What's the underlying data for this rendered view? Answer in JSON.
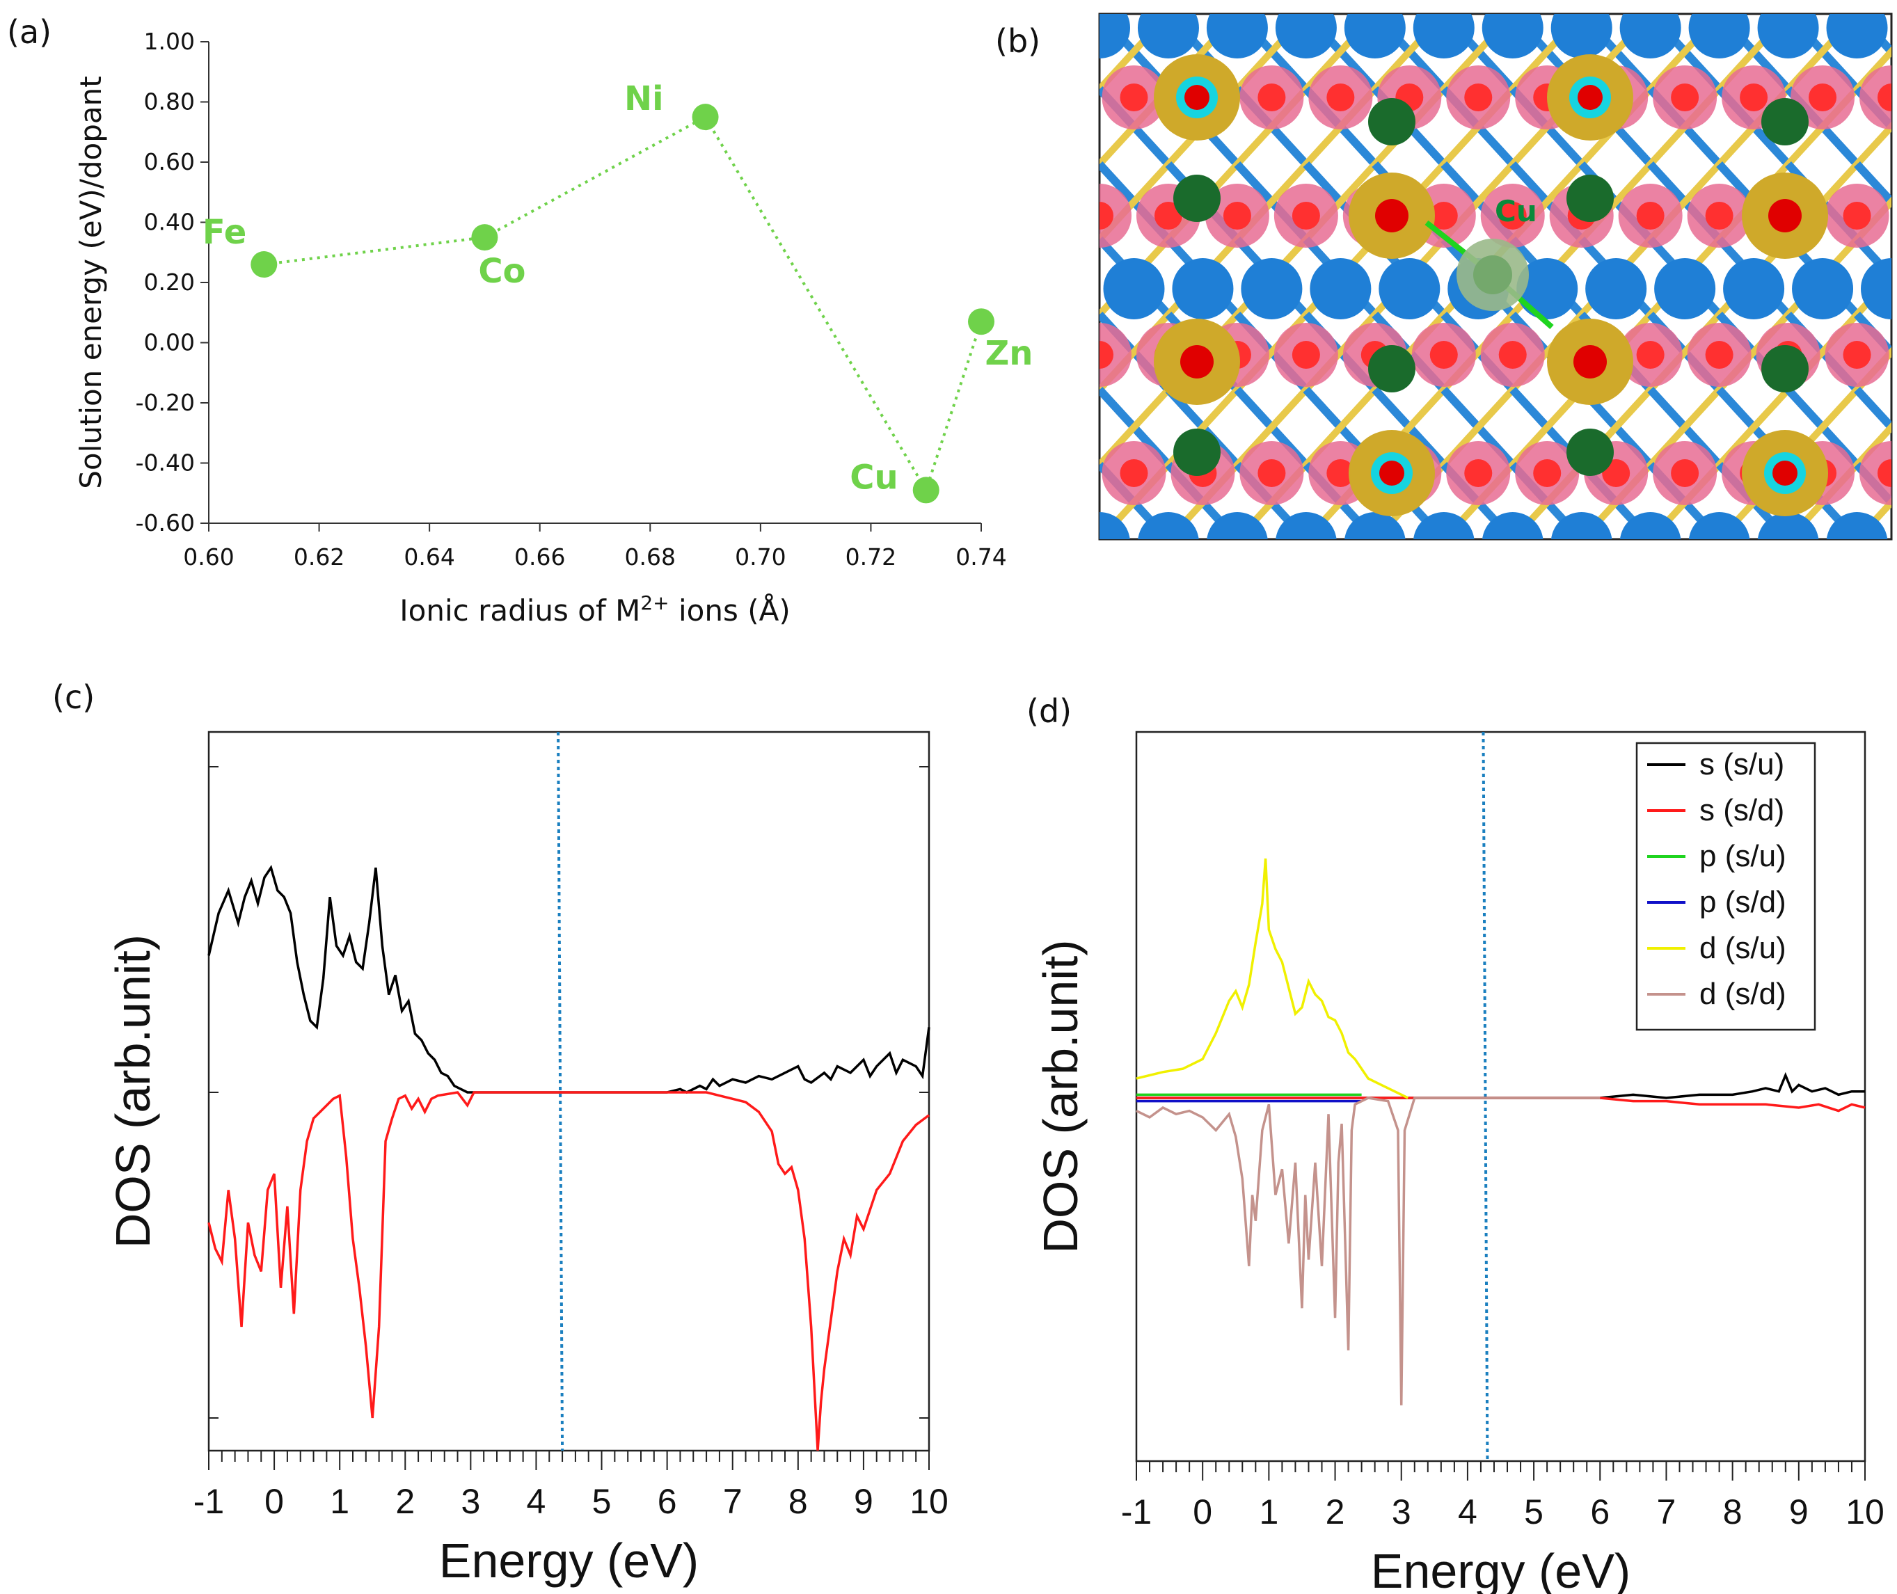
{
  "panel_labels": {
    "a": "(a)",
    "b": "(b)",
    "c": "(c)",
    "d": "(d)"
  },
  "crystal": {
    "label": "Cu"
  },
  "chart_data": [
    {
      "panel": "a",
      "type": "scatter",
      "xlabel": "Ionic radius of M",
      "xlabel_sup": "2+",
      "xlabel_tail": " ions (Å)",
      "ylabel": "Solution energy (eV)/dopant",
      "xlim": [
        0.6,
        0.74
      ],
      "ylim": [
        -0.6,
        1.0
      ],
      "xticks": [
        "0.60",
        "0.62",
        "0.64",
        "0.66",
        "0.68",
        "0.70",
        "0.72",
        "0.74"
      ],
      "yticks": [
        "1.00",
        "0.80",
        "0.60",
        "0.40",
        "0.20",
        "0.00",
        "-0.20",
        "-0.40",
        "-0.60"
      ],
      "color": "#6fd24a",
      "points": [
        {
          "label": "Fe",
          "x": 0.61,
          "y": 0.26
        },
        {
          "label": "Co",
          "x": 0.65,
          "y": 0.35
        },
        {
          "label": "Ni",
          "x": 0.69,
          "y": 0.75
        },
        {
          "label": "Cu",
          "x": 0.73,
          "y": -0.49
        },
        {
          "label": "Zn",
          "x": 0.74,
          "y": 0.07
        }
      ],
      "line_style": "dotted"
    },
    {
      "panel": "c",
      "type": "line",
      "xlabel": "Energy (eV)",
      "ylabel": "DOS (arb.unit)",
      "xlim": [
        -1,
        10
      ],
      "ylim": [
        -1.1,
        1.1
      ],
      "xticks": [
        "-1",
        "0",
        "1",
        "2",
        "3",
        "4",
        "5",
        "6",
        "7",
        "8",
        "9",
        "10"
      ],
      "fermi_level": 4.4,
      "series": [
        {
          "color": "#000000",
          "x": [
            -1,
            -0.85,
            -0.7,
            -0.55,
            -0.45,
            -0.35,
            -0.25,
            -0.15,
            -0.05,
            0.05,
            0.15,
            0.25,
            0.35,
            0.45,
            0.55,
            0.65,
            0.75,
            0.85,
            0.95,
            1.05,
            1.15,
            1.25,
            1.35,
            1.45,
            1.55,
            1.65,
            1.75,
            1.85,
            1.95,
            2.05,
            2.15,
            2.25,
            2.35,
            2.45,
            2.55,
            2.65,
            2.75,
            2.85,
            2.95,
            3.05,
            3.5,
            5,
            6,
            6.2,
            6.3,
            6.5,
            6.6,
            6.7,
            6.8,
            7,
            7.2,
            7.4,
            7.6,
            7.8,
            8,
            8.1,
            8.2,
            8.4,
            8.5,
            8.6,
            8.8,
            9,
            9.1,
            9.2,
            9.4,
            9.5,
            9.6,
            9.8,
            9.9,
            10
          ],
          "y": [
            0.42,
            0.55,
            0.62,
            0.52,
            0.6,
            0.65,
            0.58,
            0.66,
            0.69,
            0.62,
            0.6,
            0.55,
            0.4,
            0.3,
            0.22,
            0.2,
            0.35,
            0.6,
            0.45,
            0.42,
            0.48,
            0.4,
            0.38,
            0.52,
            0.69,
            0.45,
            0.3,
            0.36,
            0.25,
            0.28,
            0.18,
            0.16,
            0.12,
            0.1,
            0.06,
            0.05,
            0.02,
            0.01,
            0.0,
            0.0,
            0.0,
            0.0,
            0.0,
            0.01,
            0.0,
            0.02,
            0.01,
            0.04,
            0.02,
            0.04,
            0.03,
            0.05,
            0.04,
            0.06,
            0.08,
            0.04,
            0.03,
            0.06,
            0.04,
            0.08,
            0.06,
            0.1,
            0.05,
            0.08,
            0.12,
            0.06,
            0.1,
            0.08,
            0.05,
            0.2
          ]
        },
        {
          "color": "#ff1a1a",
          "x": [
            -1,
            -0.9,
            -0.8,
            -0.7,
            -0.6,
            -0.5,
            -0.4,
            -0.3,
            -0.2,
            -0.1,
            0,
            0.1,
            0.2,
            0.3,
            0.4,
            0.5,
            0.6,
            0.7,
            0.8,
            0.9,
            1.0,
            1.1,
            1.2,
            1.3,
            1.4,
            1.5,
            1.6,
            1.7,
            1.8,
            1.9,
            2.0,
            2.1,
            2.2,
            2.3,
            2.4,
            2.5,
            2.8,
            2.95,
            3.05,
            3.2,
            4,
            6,
            6.4,
            6.6,
            6.8,
            7,
            7.2,
            7.4,
            7.6,
            7.7,
            7.8,
            7.9,
            8.0,
            8.1,
            8.2,
            8.3,
            8.35,
            8.4,
            8.5,
            8.6,
            8.7,
            8.8,
            8.9,
            9,
            9.2,
            9.4,
            9.6,
            9.8,
            10
          ],
          "y": [
            -0.4,
            -0.48,
            -0.52,
            -0.3,
            -0.45,
            -0.72,
            -0.4,
            -0.5,
            -0.55,
            -0.3,
            -0.25,
            -0.6,
            -0.35,
            -0.68,
            -0.3,
            -0.15,
            -0.08,
            -0.06,
            -0.04,
            -0.02,
            -0.01,
            -0.2,
            -0.45,
            -0.6,
            -0.78,
            -1.0,
            -0.72,
            -0.15,
            -0.08,
            -0.02,
            -0.01,
            -0.05,
            -0.02,
            -0.06,
            -0.02,
            -0.01,
            0,
            -0.04,
            0,
            0,
            0,
            0,
            0,
            0,
            -0.01,
            -0.02,
            -0.03,
            -0.06,
            -0.12,
            -0.22,
            -0.25,
            -0.23,
            -0.3,
            -0.45,
            -0.72,
            -1.1,
            -0.95,
            -0.85,
            -0.7,
            -0.55,
            -0.45,
            -0.5,
            -0.38,
            -0.42,
            -0.3,
            -0.25,
            -0.15,
            -0.1,
            -0.07
          ]
        }
      ]
    },
    {
      "panel": "d",
      "type": "line",
      "xlabel": "Energy (eV)",
      "ylabel": "DOS (arb.unit)",
      "xlim": [
        -1,
        10
      ],
      "ylim": [
        -1.1,
        1.1
      ],
      "xticks": [
        "-1",
        "0",
        "1",
        "2",
        "3",
        "4",
        "5",
        "6",
        "7",
        "8",
        "9",
        "10"
      ],
      "fermi_level": 4.3,
      "series": [
        {
          "name": "s (s/u)",
          "color": "#000000",
          "x": [
            -1,
            2.5,
            6,
            6.5,
            7,
            7.5,
            8,
            8.3,
            8.5,
            8.7,
            8.8,
            8.9,
            9,
            9.2,
            9.4,
            9.6,
            9.8,
            10
          ],
          "y": [
            0,
            0,
            0,
            0.01,
            0.0,
            0.01,
            0.01,
            0.02,
            0.03,
            0.02,
            0.07,
            0.02,
            0.04,
            0.02,
            0.03,
            0.01,
            0.02,
            0.02
          ]
        },
        {
          "name": "s (s/d)",
          "color": "#ff1a1a",
          "x": [
            -1,
            2.5,
            6,
            6.5,
            7,
            7.5,
            8,
            8.5,
            9,
            9.3,
            9.6,
            9.8,
            10
          ],
          "y": [
            0,
            0,
            0,
            -0.01,
            -0.01,
            -0.02,
            -0.02,
            -0.02,
            -0.03,
            -0.02,
            -0.04,
            -0.02,
            -0.03
          ]
        },
        {
          "name": "p (s/u)",
          "color": "#1fd41f",
          "x": [
            -1,
            0,
            1,
            2,
            2.4
          ],
          "y": [
            0.01,
            0.01,
            0.01,
            0.01,
            0.01
          ]
        },
        {
          "name": "p (s/d)",
          "color": "#1010c8",
          "x": [
            -1,
            0,
            1,
            2,
            2.4
          ],
          "y": [
            -0.01,
            -0.01,
            -0.01,
            -0.01,
            -0.01
          ]
        },
        {
          "name": "d (s/u)",
          "color": "#f0f000",
          "x": [
            -1,
            -0.6,
            -0.3,
            0,
            0.2,
            0.4,
            0.5,
            0.6,
            0.7,
            0.8,
            0.9,
            0.95,
            1.0,
            1.1,
            1.2,
            1.3,
            1.4,
            1.5,
            1.6,
            1.7,
            1.8,
            1.9,
            2.0,
            2.1,
            2.2,
            2.3,
            2.5,
            2.7,
            2.9,
            3.0,
            3.1
          ],
          "y": [
            0.06,
            0.08,
            0.09,
            0.12,
            0.2,
            0.3,
            0.33,
            0.28,
            0.35,
            0.48,
            0.6,
            0.74,
            0.52,
            0.46,
            0.42,
            0.34,
            0.26,
            0.28,
            0.36,
            0.32,
            0.3,
            0.25,
            0.24,
            0.2,
            0.14,
            0.12,
            0.06,
            0.04,
            0.02,
            0.01,
            0
          ]
        },
        {
          "name": "d (s/d)",
          "color": "#c4928c",
          "x": [
            -1,
            -0.8,
            -0.6,
            -0.4,
            -0.2,
            0,
            0.2,
            0.4,
            0.5,
            0.6,
            0.7,
            0.75,
            0.8,
            0.9,
            1.0,
            1.1,
            1.2,
            1.3,
            1.4,
            1.5,
            1.55,
            1.6,
            1.7,
            1.8,
            1.9,
            2.0,
            2.05,
            2.1,
            2.2,
            2.25,
            2.3,
            2.5,
            2.8,
            2.95,
            3.0,
            3.05,
            3.2,
            6
          ],
          "y": [
            -0.04,
            -0.06,
            -0.03,
            -0.05,
            -0.04,
            -0.06,
            -0.1,
            -0.05,
            -0.12,
            -0.25,
            -0.52,
            -0.3,
            -0.38,
            -0.1,
            -0.02,
            -0.3,
            -0.22,
            -0.45,
            -0.2,
            -0.65,
            -0.3,
            -0.5,
            -0.2,
            -0.52,
            -0.05,
            -0.68,
            -0.2,
            -0.08,
            -0.78,
            -0.1,
            -0.02,
            0,
            -0.01,
            -0.1,
            -0.95,
            -0.1,
            0,
            0
          ]
        }
      ]
    }
  ]
}
